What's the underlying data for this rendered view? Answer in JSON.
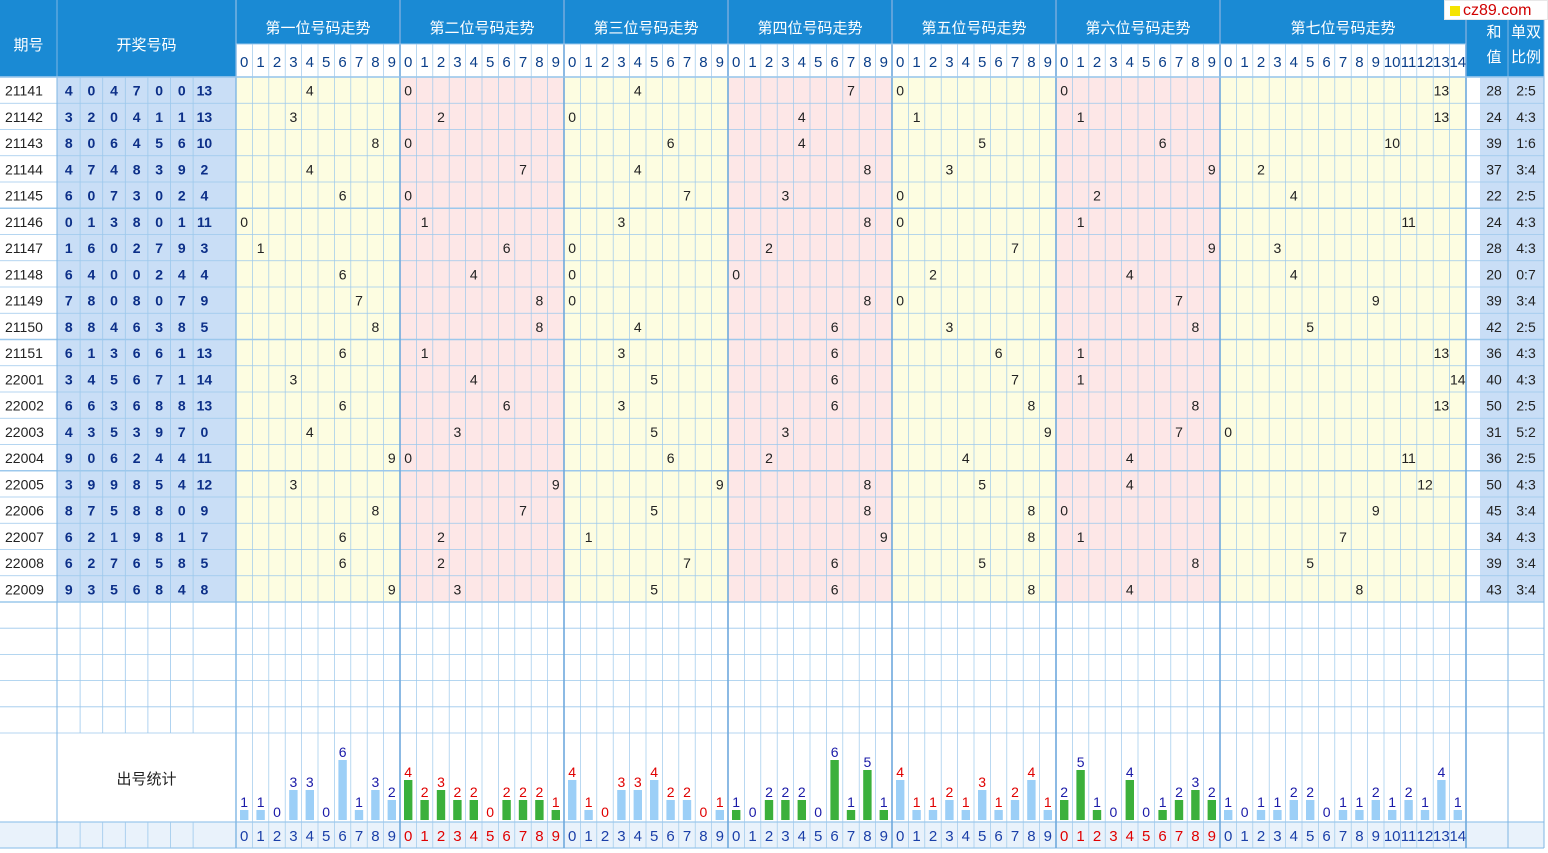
{
  "site_badge": "cz89.com",
  "headers": {
    "period": "期号",
    "draw": "开奖号码",
    "groups": [
      "第一位号码走势",
      "第二位号码走势",
      "第三位号码走势",
      "第四位号码走势",
      "第五位号码走势",
      "第六位号码走势",
      "第七位号码走势"
    ],
    "sum_top": "和",
    "sum_bottom": "值",
    "ratio_top": "单双",
    "ratio_bottom": "比例",
    "stats": "出号统计"
  },
  "colors": {
    "header_bg": "#1a8ad4",
    "draw_bg": "#c9def6",
    "yellow_bg": "#fdfde1",
    "pink_bg": "#fde7e7",
    "grid": "#9cc8ec",
    "count_blue": "#1a1aa8",
    "count_red": "#e00000",
    "bar_blue": "#9ccff7",
    "bar_green": "#3bb03b"
  },
  "chart_data": {
    "type": "table",
    "rows": [
      {
        "period": "21141",
        "digits": [
          4,
          0,
          4,
          7,
          0,
          0,
          13
        ],
        "sum": 28,
        "ratio": "2:5"
      },
      {
        "period": "21142",
        "digits": [
          3,
          2,
          0,
          4,
          1,
          1,
          13
        ],
        "sum": 24,
        "ratio": "4:3"
      },
      {
        "period": "21143",
        "digits": [
          8,
          0,
          6,
          4,
          5,
          6,
          10
        ],
        "sum": 39,
        "ratio": "1:6"
      },
      {
        "period": "21144",
        "digits": [
          4,
          7,
          4,
          8,
          3,
          9,
          2
        ],
        "sum": 37,
        "ratio": "3:4"
      },
      {
        "period": "21145",
        "digits": [
          6,
          0,
          7,
          3,
          0,
          2,
          4
        ],
        "sum": 22,
        "ratio": "2:5"
      },
      {
        "period": "21146",
        "digits": [
          0,
          1,
          3,
          8,
          0,
          1,
          11
        ],
        "sum": 24,
        "ratio": "4:3"
      },
      {
        "period": "21147",
        "digits": [
          1,
          6,
          0,
          2,
          7,
          9,
          3
        ],
        "sum": 28,
        "ratio": "4:3"
      },
      {
        "period": "21148",
        "digits": [
          6,
          4,
          0,
          0,
          2,
          4,
          4
        ],
        "sum": 20,
        "ratio": "0:7"
      },
      {
        "period": "21149",
        "digits": [
          7,
          8,
          0,
          8,
          0,
          7,
          9
        ],
        "sum": 39,
        "ratio": "3:4"
      },
      {
        "period": "21150",
        "digits": [
          8,
          8,
          4,
          6,
          3,
          8,
          5
        ],
        "sum": 42,
        "ratio": "2:5"
      },
      {
        "period": "21151",
        "digits": [
          6,
          1,
          3,
          6,
          6,
          1,
          13
        ],
        "sum": 36,
        "ratio": "4:3"
      },
      {
        "period": "22001",
        "digits": [
          3,
          4,
          5,
          6,
          7,
          1,
          14
        ],
        "sum": 40,
        "ratio": "4:3"
      },
      {
        "period": "22002",
        "digits": [
          6,
          6,
          3,
          6,
          8,
          8,
          13
        ],
        "sum": 50,
        "ratio": "2:5"
      },
      {
        "period": "22003",
        "digits": [
          4,
          3,
          5,
          3,
          9,
          7,
          0
        ],
        "sum": 31,
        "ratio": "5:2"
      },
      {
        "period": "22004",
        "digits": [
          9,
          0,
          6,
          2,
          4,
          4,
          11
        ],
        "sum": 36,
        "ratio": "2:5"
      },
      {
        "period": "22005",
        "digits": [
          3,
          9,
          9,
          8,
          5,
          4,
          12
        ],
        "sum": 50,
        "ratio": "4:3"
      },
      {
        "period": "22006",
        "digits": [
          8,
          7,
          5,
          8,
          8,
          0,
          9
        ],
        "sum": 45,
        "ratio": "3:4"
      },
      {
        "period": "22007",
        "digits": [
          6,
          2,
          1,
          9,
          8,
          1,
          7
        ],
        "sum": 34,
        "ratio": "4:3"
      },
      {
        "period": "22008",
        "digits": [
          6,
          2,
          7,
          6,
          5,
          8,
          5
        ],
        "sum": 39,
        "ratio": "3:4"
      },
      {
        "period": "22009",
        "digits": [
          9,
          3,
          5,
          6,
          8,
          4,
          8
        ],
        "sum": 43,
        "ratio": "3:4"
      }
    ],
    "position_ranges": [
      [
        0,
        9
      ],
      [
        0,
        9
      ],
      [
        0,
        9
      ],
      [
        0,
        9
      ],
      [
        0,
        9
      ],
      [
        0,
        9
      ],
      [
        0,
        14
      ]
    ],
    "stats": [
      {
        "counts": [
          1,
          1,
          0,
          3,
          3,
          0,
          6,
          1,
          3,
          2
        ],
        "count_colors": [
          "blue",
          "blue",
          "blue",
          "blue",
          "blue",
          "blue",
          "blue",
          "blue",
          "blue",
          "blue"
        ],
        "bar_colors": [
          "blue",
          "blue",
          "blue",
          "blue",
          "blue",
          "blue",
          "blue",
          "blue",
          "blue",
          "blue"
        ]
      },
      {
        "counts": [
          4,
          2,
          3,
          2,
          2,
          0,
          2,
          2,
          2,
          1
        ],
        "count_colors": [
          "red",
          "red",
          "red",
          "red",
          "red",
          "red",
          "red",
          "red",
          "red",
          "red"
        ],
        "bar_colors": [
          "green",
          "green",
          "green",
          "green",
          "green",
          "green",
          "green",
          "green",
          "green",
          "green"
        ]
      },
      {
        "counts": [
          4,
          1,
          0,
          3,
          3,
          4,
          2,
          2,
          0,
          1
        ],
        "count_colors": [
          "red",
          "red",
          "red",
          "red",
          "red",
          "red",
          "red",
          "red",
          "red",
          "red"
        ],
        "bar_colors": [
          "blue",
          "blue",
          "blue",
          "blue",
          "blue",
          "blue",
          "blue",
          "blue",
          "blue",
          "blue"
        ]
      },
      {
        "counts": [
          1,
          0,
          2,
          2,
          2,
          0,
          6,
          1,
          5,
          1
        ],
        "count_colors": [
          "blue",
          "blue",
          "blue",
          "blue",
          "blue",
          "blue",
          "blue",
          "blue",
          "blue",
          "blue"
        ],
        "bar_colors": [
          "green",
          "green",
          "green",
          "green",
          "green",
          "green",
          "green",
          "green",
          "green",
          "green"
        ]
      },
      {
        "counts": [
          4,
          1,
          1,
          2,
          1,
          3,
          1,
          2,
          4,
          1
        ],
        "count_colors": [
          "red",
          "red",
          "red",
          "red",
          "red",
          "red",
          "red",
          "red",
          "red",
          "red"
        ],
        "bar_colors": [
          "blue",
          "blue",
          "blue",
          "blue",
          "blue",
          "blue",
          "blue",
          "blue",
          "blue",
          "blue"
        ]
      },
      {
        "counts": [
          2,
          5,
          1,
          0,
          4,
          0,
          1,
          2,
          3,
          2
        ],
        "count_colors": [
          "blue",
          "blue",
          "blue",
          "blue",
          "blue",
          "blue",
          "blue",
          "blue",
          "blue",
          "blue"
        ],
        "bar_colors": [
          "green",
          "green",
          "green",
          "green",
          "green",
          "green",
          "green",
          "green",
          "green",
          "green"
        ]
      },
      {
        "counts": [
          1,
          0,
          1,
          1,
          2,
          2,
          0,
          1,
          1,
          2,
          1,
          2,
          1,
          4,
          1
        ],
        "count_colors": [
          "blue",
          "blue",
          "blue",
          "blue",
          "blue",
          "blue",
          "blue",
          "blue",
          "blue",
          "blue",
          "blue",
          "blue",
          "blue",
          "blue",
          "blue"
        ],
        "bar_colors": [
          "blue",
          "blue",
          "blue",
          "blue",
          "blue",
          "blue",
          "blue",
          "blue",
          "blue",
          "blue",
          "blue",
          "blue",
          "blue",
          "blue",
          "blue"
        ]
      }
    ],
    "bottom_label_colors": [
      "blue",
      "red",
      "blue",
      "blue",
      "blue",
      "red",
      "blue"
    ]
  }
}
